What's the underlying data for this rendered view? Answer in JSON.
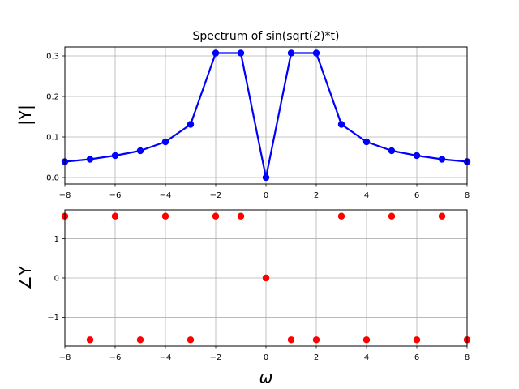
{
  "chart_data": [
    {
      "type": "line",
      "title": "Spectrum of sin(sqrt(2)*t)",
      "xlabel": "",
      "ylabel": "|Y|",
      "xlim": [
        -8,
        8
      ],
      "ylim": [
        -0.016,
        0.322
      ],
      "grid": true,
      "xticks": [
        -8,
        -6,
        -4,
        -2,
        0,
        2,
        4,
        6,
        8
      ],
      "xtick_labels": [
        "−8",
        "−6",
        "−4",
        "−2",
        "0",
        "2",
        "4",
        "6",
        "8"
      ],
      "yticks": [
        0.0,
        0.1,
        0.2,
        0.3
      ],
      "ytick_labels": [
        "0.0",
        "0.1",
        "0.2",
        "0.3"
      ],
      "series": [
        {
          "color": "#0000ff",
          "style": "line-with-markers",
          "x": [
            -8,
            -7,
            -6,
            -5,
            -4,
            -3,
            -2,
            -1,
            0,
            1,
            2,
            3,
            4,
            5,
            6,
            7,
            8
          ],
          "y": [
            0.039,
            0.045,
            0.054,
            0.066,
            0.088,
            0.131,
            0.307,
            0.307,
            0.0,
            0.307,
            0.307,
            0.131,
            0.088,
            0.066,
            0.054,
            0.045,
            0.039
          ]
        }
      ]
    },
    {
      "type": "scatter",
      "title": "",
      "xlabel": "ω",
      "ylabel": "∠Y",
      "xlim": [
        -8,
        8
      ],
      "ylim": [
        -1.73,
        1.73
      ],
      "grid": true,
      "xticks": [
        -8,
        -6,
        -4,
        -2,
        0,
        2,
        4,
        6,
        8
      ],
      "xtick_labels": [
        "−8",
        "−6",
        "−4",
        "−2",
        "0",
        "2",
        "4",
        "6",
        "8"
      ],
      "yticks": [
        -1,
        0,
        1
      ],
      "ytick_labels": [
        "−1",
        "0",
        "1"
      ],
      "series": [
        {
          "color": "#ff0000",
          "style": "markers",
          "x": [
            -8,
            -7,
            -6,
            -5,
            -4,
            -3,
            -2,
            -1,
            0,
            1,
            2,
            3,
            4,
            5,
            6,
            7,
            8
          ],
          "y": [
            1.571,
            -1.571,
            1.571,
            -1.571,
            1.571,
            -1.571,
            1.571,
            1.571,
            0.0,
            -1.571,
            -1.571,
            1.571,
            -1.571,
            1.571,
            -1.571,
            1.571,
            -1.571
          ]
        }
      ]
    }
  ]
}
